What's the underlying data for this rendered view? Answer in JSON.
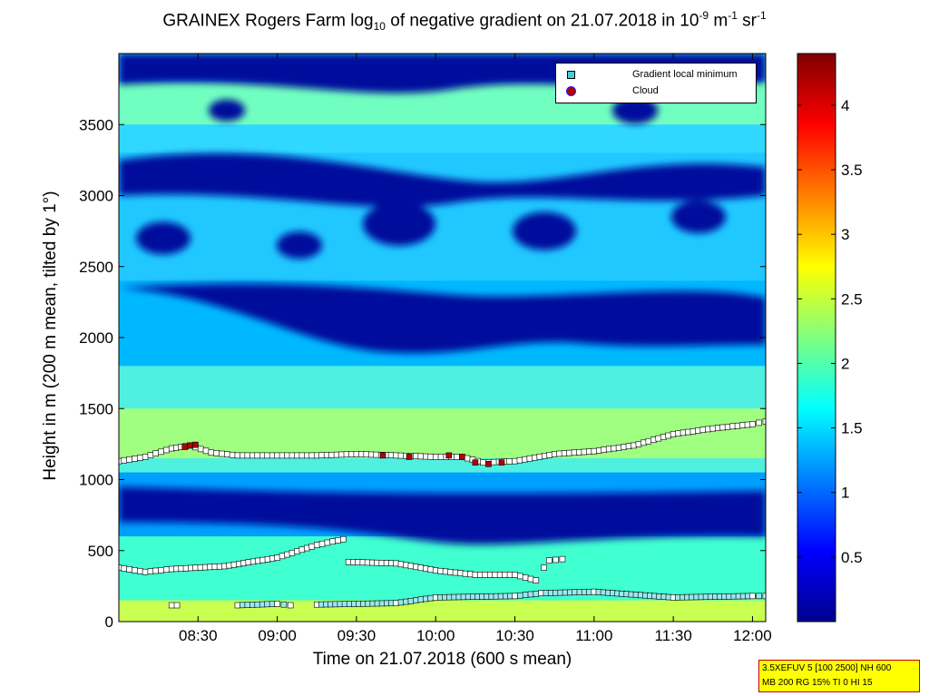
{
  "title": {
    "part1": "GRAINEX Rogers Farm log",
    "sub": "10",
    "part2": " of negative gradient on 21.07.2018 in 10",
    "sup1": "-9",
    "part3": " m",
    "sup2": "-1",
    "part4": " sr",
    "sup3": "-1"
  },
  "info_box": {
    "line1": "3.5XEFUV 5 [100 2500] NH 600",
    "line2": "MB 200 RG 15% TI 0 HI 15"
  },
  "colors": {
    "low": "#00008f",
    "mid": "#00ffff",
    "high": "#7f0000",
    "marker": "#3fd0d8",
    "cloud": "#b30000"
  },
  "chart_data": {
    "type": "heatmap",
    "xlabel": "Time on 21.07.2018 (600 s mean)",
    "ylabel": "Height in m (200 m mean, tilted by 1°)",
    "x_range": [
      "08:00",
      "12:05"
    ],
    "xticks": [
      "08:30",
      "09:00",
      "09:30",
      "10:00",
      "10:30",
      "11:00",
      "11:30",
      "12:00"
    ],
    "ylim": [
      0,
      4000
    ],
    "yticks": [
      0,
      500,
      1000,
      1500,
      2000,
      2500,
      3000,
      3500
    ],
    "colorbar": {
      "clim": [
        0,
        4.4
      ],
      "ticks": [
        "0.5",
        "1",
        "1.5",
        "2",
        "2.5",
        "3",
        "3.5",
        "4"
      ],
      "colormap": "jet"
    },
    "legend": {
      "position": "top-right",
      "entries": [
        "Gradient local minimum",
        "Cloud"
      ]
    },
    "series": [
      {
        "name": "Gradient local minimum",
        "layer": "upper",
        "x": [
          "08:00",
          "08:10",
          "08:20",
          "08:27",
          "08:35",
          "08:45",
          "09:00",
          "09:15",
          "09:30",
          "09:45",
          "10:00",
          "10:10",
          "10:18",
          "10:30",
          "10:45",
          "11:00",
          "11:15",
          "11:30",
          "11:45",
          "12:00",
          "12:05"
        ],
        "y": [
          1130,
          1160,
          1220,
          1240,
          1190,
          1170,
          1170,
          1170,
          1180,
          1170,
          1160,
          1160,
          1120,
          1130,
          1180,
          1200,
          1240,
          1320,
          1360,
          1390,
          1410
        ]
      },
      {
        "name": "Gradient local minimum",
        "layer": "middle-a",
        "x": [
          "08:00",
          "08:10",
          "08:20",
          "08:40",
          "09:00",
          "09:15",
          "09:25"
        ],
        "y": [
          380,
          350,
          370,
          390,
          450,
          540,
          580
        ]
      },
      {
        "name": "Gradient local minimum",
        "layer": "middle-b",
        "x": [
          "09:27",
          "09:45",
          "10:00",
          "10:15",
          "10:30",
          "10:38"
        ],
        "y": [
          420,
          410,
          360,
          330,
          330,
          290
        ]
      },
      {
        "name": "Gradient local minimum",
        "layer": "middle-c",
        "x": [
          "10:41",
          "10:43",
          "10:48"
        ],
        "y": [
          380,
          430,
          440
        ]
      },
      {
        "name": "Gradient local minimum",
        "layer": "lower-a",
        "x": [
          "08:20",
          "08:22"
        ],
        "y": [
          115,
          115
        ]
      },
      {
        "name": "Gradient local minimum",
        "layer": "lower-b",
        "x": [
          "08:45",
          "09:00",
          "09:05"
        ],
        "y": [
          115,
          125,
          115
        ]
      },
      {
        "name": "Gradient local minimum",
        "layer": "lower-c",
        "x": [
          "09:15",
          "09:45",
          "10:00",
          "10:30",
          "10:40",
          "11:00",
          "11:30",
          "12:00",
          "12:05"
        ],
        "y": [
          120,
          130,
          170,
          180,
          200,
          210,
          170,
          180,
          180
        ]
      },
      {
        "name": "Cloud",
        "x": [
          "08:25",
          "08:27",
          "08:29",
          "09:40",
          "09:50",
          "10:05",
          "10:10",
          "10:15",
          "10:20",
          "10:25"
        ],
        "y": [
          1230,
          1240,
          1245,
          1170,
          1160,
          1170,
          1160,
          1120,
          1110,
          1120
        ]
      }
    ]
  }
}
